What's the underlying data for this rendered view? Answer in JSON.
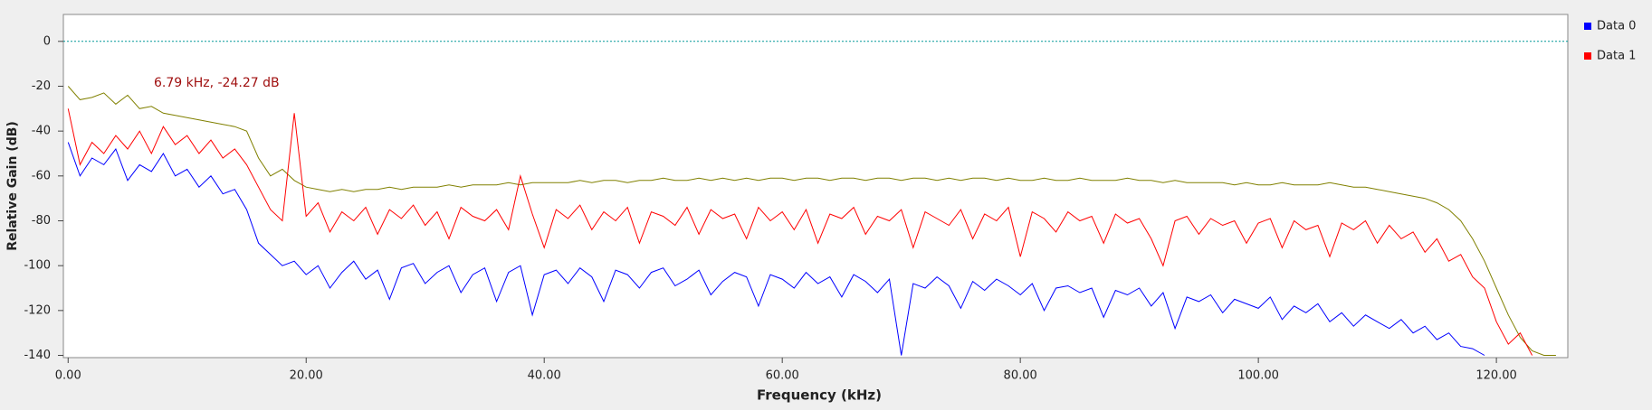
{
  "chart_data": {
    "type": "line",
    "xlabel": "Frequency (kHz)",
    "ylabel": "Relative Gain (dB)",
    "annotation": "6.79 kHz, -24.27 dB",
    "marker_line": 0,
    "x": [
      0,
      1,
      2,
      3,
      4,
      5,
      6,
      7,
      8,
      9,
      10,
      11,
      12,
      13,
      14,
      15,
      16,
      17,
      18,
      19,
      20,
      21,
      22,
      23,
      24,
      25,
      26,
      27,
      28,
      29,
      30,
      31,
      32,
      33,
      34,
      35,
      36,
      37,
      38,
      39,
      40,
      41,
      42,
      43,
      44,
      45,
      46,
      47,
      48,
      49,
      50,
      51,
      52,
      53,
      54,
      55,
      56,
      57,
      58,
      59,
      60,
      61,
      62,
      63,
      64,
      65,
      66,
      67,
      68,
      69,
      70,
      71,
      72,
      73,
      74,
      75,
      76,
      77,
      78,
      79,
      80,
      81,
      82,
      83,
      84,
      85,
      86,
      87,
      88,
      89,
      90,
      91,
      92,
      93,
      94,
      95,
      96,
      97,
      98,
      99,
      100,
      101,
      102,
      103,
      104,
      105,
      106,
      107,
      108,
      109,
      110,
      111,
      112,
      113,
      114,
      115,
      116,
      117,
      118,
      119,
      120,
      121,
      122,
      123,
      124,
      125
    ],
    "series": [
      {
        "color": "#808000",
        "values": [
          -20,
          -26,
          -25,
          -23,
          -28,
          -24,
          -30,
          -29,
          -32,
          -33,
          -34,
          -35,
          -36,
          -37,
          -38,
          -40,
          -52,
          -60,
          -57,
          -62,
          -65,
          -66,
          -67,
          -66,
          -67,
          -66,
          -66,
          -65,
          -66,
          -65,
          -65,
          -65,
          -64,
          -65,
          -64,
          -64,
          -64,
          -63,
          -64,
          -63,
          -63,
          -63,
          -63,
          -62,
          -63,
          -62,
          -62,
          -63,
          -62,
          -62,
          -61,
          -62,
          -62,
          -61,
          -62,
          -61,
          -62,
          -61,
          -62,
          -61,
          -61,
          -62,
          -61,
          -61,
          -62,
          -61,
          -61,
          -62,
          -61,
          -61,
          -62,
          -61,
          -61,
          -62,
          -61,
          -62,
          -61,
          -61,
          -62,
          -61,
          -62,
          -62,
          -61,
          -62,
          -62,
          -61,
          -62,
          -62,
          -62,
          -61,
          -62,
          -62,
          -63,
          -62,
          -63,
          -63,
          -63,
          -63,
          -64,
          -63,
          -64,
          -64,
          -63,
          -64,
          -64,
          -64,
          -63,
          -64,
          -65,
          -65,
          -66,
          -67,
          -68,
          -69,
          -70,
          -72,
          -75,
          -80,
          -88,
          -98,
          -110,
          -122,
          -132,
          -138,
          -140,
          -140
        ]
      },
      {
        "name": "Data 0",
        "color": "#0000ff",
        "values": [
          -45,
          -60,
          -52,
          -55,
          -48,
          -62,
          -55,
          -58,
          -50,
          -60,
          -57,
          -65,
          -60,
          -68,
          -66,
          -75,
          -90,
          -95,
          -100,
          -98,
          -104,
          -100,
          -110,
          -103,
          -98,
          -106,
          -102,
          -115,
          -101,
          -99,
          -108,
          -103,
          -100,
          -112,
          -104,
          -101,
          -116,
          -103,
          -100,
          -122,
          -104,
          -102,
          -108,
          -101,
          -105,
          -116,
          -102,
          -104,
          -110,
          -103,
          -101,
          -109,
          -106,
          -102,
          -113,
          -107,
          -103,
          -105,
          -118,
          -104,
          -106,
          -110,
          -103,
          -108,
          -105,
          -114,
          -104,
          -107,
          -112,
          -106,
          -140,
          -108,
          -110,
          -105,
          -109,
          -119,
          -107,
          -111,
          -106,
          -109,
          -113,
          -108,
          -120,
          -110,
          -109,
          -112,
          -110,
          -123,
          -111,
          -113,
          -110,
          -118,
          -112,
          -128,
          -114,
          -116,
          -113,
          -121,
          -115,
          -117,
          -119,
          -114,
          -124,
          -118,
          -121,
          -117,
          -125,
          -121,
          -127,
          -122,
          -125,
          -128,
          -124,
          -130,
          -127,
          -133,
          -130,
          -136,
          -137,
          -140,
          null,
          null,
          null,
          null,
          null,
          null
        ]
      },
      {
        "name": "Data 1",
        "color": "#ff0000",
        "values": [
          -30,
          -55,
          -45,
          -50,
          -42,
          -48,
          -40,
          -50,
          -38,
          -46,
          -42,
          -50,
          -44,
          -52,
          -48,
          -55,
          -65,
          -75,
          -80,
          -32,
          -78,
          -72,
          -85,
          -76,
          -80,
          -74,
          -86,
          -75,
          -79,
          -73,
          -82,
          -76,
          -88,
          -74,
          -78,
          -80,
          -75,
          -84,
          -60,
          -77,
          -92,
          -75,
          -79,
          -73,
          -84,
          -76,
          -80,
          -74,
          -90,
          -76,
          -78,
          -82,
          -74,
          -86,
          -75,
          -79,
          -77,
          -88,
          -74,
          -80,
          -76,
          -84,
          -75,
          -90,
          -77,
          -79,
          -74,
          -86,
          -78,
          -80,
          -75,
          -92,
          -76,
          -79,
          -82,
          -75,
          -88,
          -77,
          -80,
          -74,
          -96,
          -76,
          -79,
          -85,
          -76,
          -80,
          -78,
          -90,
          -77,
          -81,
          -79,
          -88,
          -100,
          -80,
          -78,
          -86,
          -79,
          -82,
          -80,
          -90,
          -81,
          -79,
          -92,
          -80,
          -84,
          -82,
          -96,
          -81,
          -84,
          -80,
          -90,
          -82,
          -88,
          -85,
          -94,
          -88,
          -98,
          -95,
          -105,
          -110,
          -125,
          -135,
          -130,
          -140,
          null,
          null
        ]
      }
    ],
    "xlim": [
      -0.4,
      126
    ],
    "ylim": [
      -141,
      12
    ],
    "xticks": [
      {
        "value": 0,
        "label": "0.00"
      },
      {
        "value": 20,
        "label": "20.00"
      },
      {
        "value": 40,
        "label": "40.00"
      },
      {
        "value": 60,
        "label": "60.00"
      },
      {
        "value": 80,
        "label": "80.00"
      },
      {
        "value": 100,
        "label": "100.00"
      },
      {
        "value": 120,
        "label": "120.00"
      }
    ],
    "yticks": [
      0,
      -20,
      -40,
      -60,
      -80,
      -100,
      -120,
      -140
    ],
    "grid": false,
    "legend": "right"
  }
}
